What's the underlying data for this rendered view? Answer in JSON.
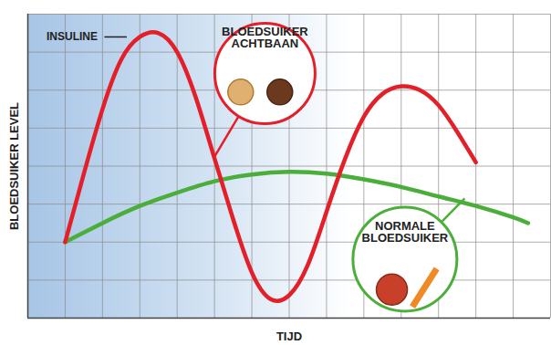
{
  "chart_data": {
    "type": "line",
    "x_label": "TIJD",
    "y_label": "BLOEDSUIKER LEVEL",
    "annotations": [
      "BLOEDSUIKER ACHTBAAN"
    ],
    "series": [
      {
        "name": "INSULINE",
        "color": "#e3202a",
        "x": [
          1,
          1.5,
          2,
          2.5,
          3,
          3.5,
          4,
          4.5,
          5,
          5.5,
          6,
          6.5,
          7,
          7.5,
          8,
          8.5,
          9,
          9.5,
          10,
          10.5,
          11,
          11.5,
          12
        ],
        "values": [
          2.0,
          3.8,
          5.5,
          6.8,
          7.4,
          7.5,
          7.0,
          5.8,
          4.2,
          2.6,
          1.2,
          0.5,
          0.6,
          1.4,
          2.8,
          4.2,
          5.3,
          5.9,
          6.1,
          6.0,
          5.6,
          4.9,
          4.1
        ]
      },
      {
        "name": "NORMALE BLOEDSUIKER",
        "color": "#4cae3a",
        "x": [
          1,
          2,
          3,
          4,
          5,
          6,
          7,
          8,
          9,
          10,
          11,
          12,
          13,
          13.4
        ],
        "values": [
          2.0,
          2.5,
          2.95,
          3.3,
          3.6,
          3.78,
          3.85,
          3.8,
          3.65,
          3.45,
          3.2,
          2.95,
          2.65,
          2.5
        ]
      }
    ],
    "xlim": [
      0,
      14
    ],
    "xticks": [
      0,
      1,
      2,
      3,
      4,
      5,
      6,
      7,
      8,
      9,
      10,
      11,
      12,
      13,
      14
    ],
    "ylim": [
      0,
      8
    ],
    "yticks": [
      0,
      1,
      2,
      3,
      4,
      5,
      6,
      7,
      8
    ],
    "grid": true,
    "tick_labels": false
  }
}
